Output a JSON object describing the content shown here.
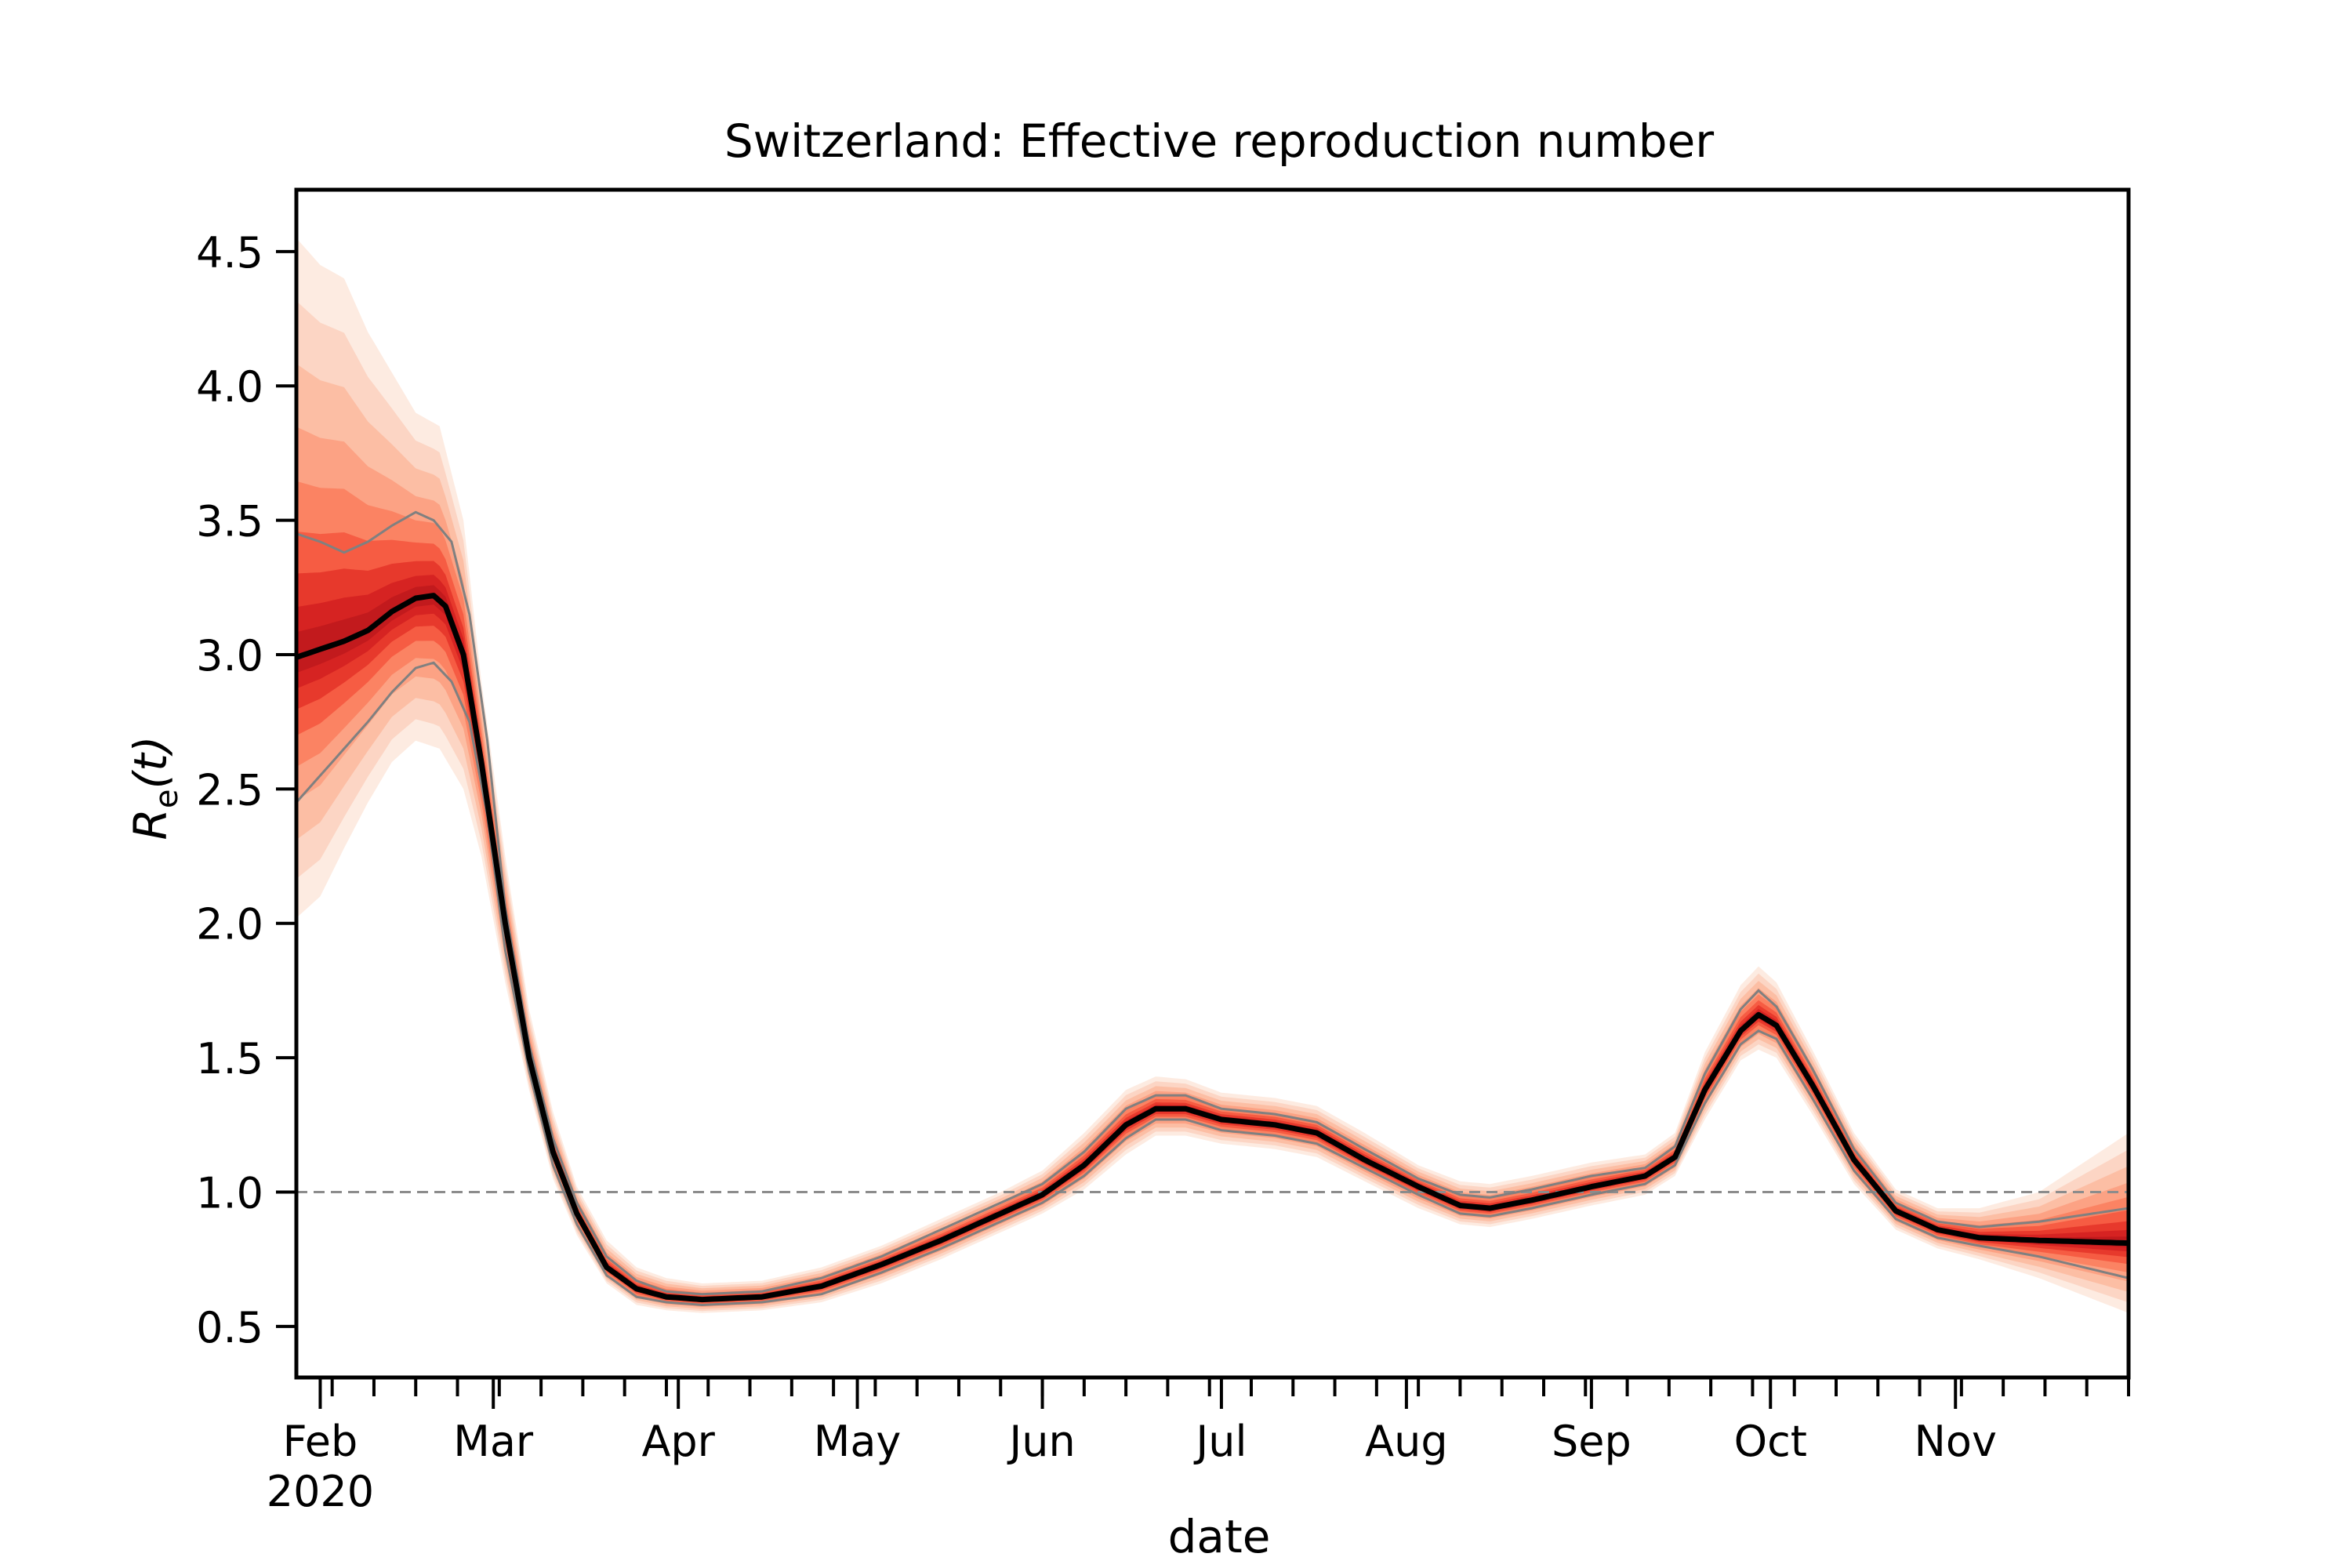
{
  "chart_data": {
    "type": "line",
    "title": "Switzerland: Effective reproduction number",
    "xlabel": "date",
    "ylabel": {
      "base": "R",
      "subscript": "e",
      "suffix": "(t)"
    },
    "x_axis": {
      "type": "date",
      "range": [
        "2020-01-28",
        "2020-11-30"
      ],
      "month_ticks": [
        {
          "date": "2020-02-01",
          "label": "Feb",
          "sublabel": "2020"
        },
        {
          "date": "2020-03-01",
          "label": "Mar"
        },
        {
          "date": "2020-04-01",
          "label": "Apr"
        },
        {
          "date": "2020-05-01",
          "label": "May"
        },
        {
          "date": "2020-06-01",
          "label": "Jun"
        },
        {
          "date": "2020-07-01",
          "label": "Jul"
        },
        {
          "date": "2020-08-01",
          "label": "Aug"
        },
        {
          "date": "2020-09-01",
          "label": "Sep"
        },
        {
          "date": "2020-10-01",
          "label": "Oct"
        },
        {
          "date": "2020-11-01",
          "label": "Nov"
        }
      ],
      "minor_ticks": "weekly"
    },
    "y_axis": {
      "range": [
        0.31,
        4.73
      ],
      "ticks": [
        "0.5",
        "1.0",
        "1.5",
        "2.0",
        "2.5",
        "3.0",
        "3.5",
        "4.0",
        "4.5"
      ]
    },
    "reference_line": {
      "y": 1.0,
      "style": "dashed",
      "color": "#8c8c8c"
    },
    "colors": {
      "median": "#000000",
      "band": "#d7301f",
      "band_light": "#fcbba1",
      "interval": "#808080"
    },
    "series": [
      {
        "role": "median",
        "points": [
          [
            "2020-01-28",
            2.99
          ],
          [
            "2020-02-01",
            3.02
          ],
          [
            "2020-02-05",
            3.05
          ],
          [
            "2020-02-09",
            3.09
          ],
          [
            "2020-02-13",
            3.16
          ],
          [
            "2020-02-17",
            3.21
          ],
          [
            "2020-02-20",
            3.22
          ],
          [
            "2020-02-22",
            3.18
          ],
          [
            "2020-02-25",
            3.0
          ],
          [
            "2020-02-28",
            2.6
          ],
          [
            "2020-03-03",
            2.0
          ],
          [
            "2020-03-07",
            1.5
          ],
          [
            "2020-03-11",
            1.15
          ],
          [
            "2020-03-15",
            0.92
          ],
          [
            "2020-03-20",
            0.72
          ],
          [
            "2020-03-25",
            0.64
          ],
          [
            "2020-03-30",
            0.61
          ],
          [
            "2020-04-05",
            0.6
          ],
          [
            "2020-04-15",
            0.61
          ],
          [
            "2020-04-25",
            0.65
          ],
          [
            "2020-05-05",
            0.73
          ],
          [
            "2020-05-15",
            0.82
          ],
          [
            "2020-05-25",
            0.92
          ],
          [
            "2020-06-01",
            0.99
          ],
          [
            "2020-06-08",
            1.1
          ],
          [
            "2020-06-15",
            1.25
          ],
          [
            "2020-06-20",
            1.31
          ],
          [
            "2020-06-25",
            1.31
          ],
          [
            "2020-07-01",
            1.27
          ],
          [
            "2020-07-10",
            1.25
          ],
          [
            "2020-07-17",
            1.22
          ],
          [
            "2020-07-25",
            1.12
          ],
          [
            "2020-08-03",
            1.02
          ],
          [
            "2020-08-10",
            0.95
          ],
          [
            "2020-08-15",
            0.94
          ],
          [
            "2020-08-22",
            0.97
          ],
          [
            "2020-09-01",
            1.02
          ],
          [
            "2020-09-10",
            1.06
          ],
          [
            "2020-09-15",
            1.13
          ],
          [
            "2020-09-20",
            1.38
          ],
          [
            "2020-09-26",
            1.6
          ],
          [
            "2020-09-29",
            1.66
          ],
          [
            "2020-10-02",
            1.62
          ],
          [
            "2020-10-08",
            1.4
          ],
          [
            "2020-10-15",
            1.12
          ],
          [
            "2020-10-22",
            0.93
          ],
          [
            "2020-10-29",
            0.86
          ],
          [
            "2020-11-05",
            0.83
          ],
          [
            "2020-11-15",
            0.82
          ],
          [
            "2020-11-30",
            0.81
          ]
        ]
      },
      {
        "role": "interval_upper",
        "points": [
          [
            "2020-01-28",
            3.45
          ],
          [
            "2020-02-01",
            3.42
          ],
          [
            "2020-02-05",
            3.38
          ],
          [
            "2020-02-09",
            3.42
          ],
          [
            "2020-02-13",
            3.48
          ],
          [
            "2020-02-17",
            3.53
          ],
          [
            "2020-02-20",
            3.5
          ],
          [
            "2020-02-23",
            3.42
          ],
          [
            "2020-02-26",
            3.15
          ],
          [
            "2020-02-29",
            2.68
          ],
          [
            "2020-03-03",
            2.06
          ],
          [
            "2020-03-07",
            1.55
          ],
          [
            "2020-03-11",
            1.2
          ],
          [
            "2020-03-15",
            0.96
          ],
          [
            "2020-03-20",
            0.76
          ],
          [
            "2020-03-25",
            0.67
          ],
          [
            "2020-03-30",
            0.63
          ],
          [
            "2020-04-05",
            0.62
          ],
          [
            "2020-04-15",
            0.63
          ],
          [
            "2020-04-25",
            0.68
          ],
          [
            "2020-05-05",
            0.76
          ],
          [
            "2020-05-15",
            0.86
          ],
          [
            "2020-05-25",
            0.96
          ],
          [
            "2020-06-01",
            1.03
          ],
          [
            "2020-06-08",
            1.15
          ],
          [
            "2020-06-15",
            1.31
          ],
          [
            "2020-06-20",
            1.36
          ],
          [
            "2020-06-25",
            1.36
          ],
          [
            "2020-07-01",
            1.31
          ],
          [
            "2020-07-10",
            1.29
          ],
          [
            "2020-07-17",
            1.26
          ],
          [
            "2020-07-25",
            1.16
          ],
          [
            "2020-08-03",
            1.05
          ],
          [
            "2020-08-10",
            0.99
          ],
          [
            "2020-08-15",
            0.98
          ],
          [
            "2020-08-22",
            1.01
          ],
          [
            "2020-09-01",
            1.06
          ],
          [
            "2020-09-10",
            1.09
          ],
          [
            "2020-09-15",
            1.17
          ],
          [
            "2020-09-20",
            1.44
          ],
          [
            "2020-09-26",
            1.68
          ],
          [
            "2020-09-29",
            1.75
          ],
          [
            "2020-10-02",
            1.69
          ],
          [
            "2020-10-08",
            1.46
          ],
          [
            "2020-10-15",
            1.16
          ],
          [
            "2020-10-22",
            0.96
          ],
          [
            "2020-10-29",
            0.89
          ],
          [
            "2020-11-05",
            0.87
          ],
          [
            "2020-11-15",
            0.89
          ],
          [
            "2020-11-30",
            0.94
          ]
        ]
      },
      {
        "role": "interval_lower",
        "points": [
          [
            "2020-01-28",
            2.45
          ],
          [
            "2020-02-01",
            2.55
          ],
          [
            "2020-02-05",
            2.65
          ],
          [
            "2020-02-09",
            2.75
          ],
          [
            "2020-02-13",
            2.86
          ],
          [
            "2020-02-17",
            2.95
          ],
          [
            "2020-02-20",
            2.97
          ],
          [
            "2020-02-23",
            2.9
          ],
          [
            "2020-02-26",
            2.75
          ],
          [
            "2020-02-29",
            2.4
          ],
          [
            "2020-03-03",
            1.9
          ],
          [
            "2020-03-07",
            1.45
          ],
          [
            "2020-03-11",
            1.1
          ],
          [
            "2020-03-15",
            0.88
          ],
          [
            "2020-03-20",
            0.69
          ],
          [
            "2020-03-25",
            0.61
          ],
          [
            "2020-03-30",
            0.59
          ],
          [
            "2020-04-05",
            0.58
          ],
          [
            "2020-04-15",
            0.59
          ],
          [
            "2020-04-25",
            0.62
          ],
          [
            "2020-05-05",
            0.7
          ],
          [
            "2020-05-15",
            0.79
          ],
          [
            "2020-05-25",
            0.89
          ],
          [
            "2020-06-01",
            0.96
          ],
          [
            "2020-06-08",
            1.06
          ],
          [
            "2020-06-15",
            1.2
          ],
          [
            "2020-06-20",
            1.27
          ],
          [
            "2020-06-25",
            1.27
          ],
          [
            "2020-07-01",
            1.23
          ],
          [
            "2020-07-10",
            1.21
          ],
          [
            "2020-07-17",
            1.18
          ],
          [
            "2020-07-25",
            1.09
          ],
          [
            "2020-08-03",
            0.99
          ],
          [
            "2020-08-10",
            0.92
          ],
          [
            "2020-08-15",
            0.91
          ],
          [
            "2020-08-22",
            0.94
          ],
          [
            "2020-09-01",
            0.99
          ],
          [
            "2020-09-10",
            1.03
          ],
          [
            "2020-09-15",
            1.1
          ],
          [
            "2020-09-20",
            1.33
          ],
          [
            "2020-09-26",
            1.55
          ],
          [
            "2020-09-29",
            1.6
          ],
          [
            "2020-10-02",
            1.57
          ],
          [
            "2020-10-08",
            1.35
          ],
          [
            "2020-10-15",
            1.08
          ],
          [
            "2020-10-22",
            0.9
          ],
          [
            "2020-10-29",
            0.83
          ],
          [
            "2020-11-05",
            0.8
          ],
          [
            "2020-11-15",
            0.76
          ],
          [
            "2020-11-30",
            0.68
          ]
        ]
      },
      {
        "role": "band_outer_upper",
        "points": [
          [
            "2020-01-28",
            4.55
          ],
          [
            "2020-02-01",
            4.45
          ],
          [
            "2020-02-05",
            4.4
          ],
          [
            "2020-02-09",
            4.2
          ],
          [
            "2020-02-13",
            4.05
          ],
          [
            "2020-02-17",
            3.9
          ],
          [
            "2020-02-21",
            3.85
          ],
          [
            "2020-02-25",
            3.5
          ],
          [
            "2020-02-28",
            2.9
          ],
          [
            "2020-03-03",
            2.25
          ],
          [
            "2020-03-07",
            1.68
          ],
          [
            "2020-03-11",
            1.3
          ],
          [
            "2020-03-15",
            1.02
          ],
          [
            "2020-03-20",
            0.82
          ],
          [
            "2020-03-25",
            0.72
          ],
          [
            "2020-03-30",
            0.68
          ],
          [
            "2020-04-05",
            0.66
          ],
          [
            "2020-04-15",
            0.67
          ],
          [
            "2020-04-25",
            0.72
          ],
          [
            "2020-05-05",
            0.8
          ],
          [
            "2020-05-15",
            0.9
          ],
          [
            "2020-05-25",
            1.0
          ],
          [
            "2020-06-01",
            1.08
          ],
          [
            "2020-06-08",
            1.22
          ],
          [
            "2020-06-15",
            1.38
          ],
          [
            "2020-06-20",
            1.43
          ],
          [
            "2020-06-25",
            1.42
          ],
          [
            "2020-07-01",
            1.37
          ],
          [
            "2020-07-10",
            1.35
          ],
          [
            "2020-07-17",
            1.32
          ],
          [
            "2020-07-25",
            1.22
          ],
          [
            "2020-08-03",
            1.1
          ],
          [
            "2020-08-10",
            1.04
          ],
          [
            "2020-08-15",
            1.03
          ],
          [
            "2020-08-22",
            1.06
          ],
          [
            "2020-09-01",
            1.11
          ],
          [
            "2020-09-10",
            1.14
          ],
          [
            "2020-09-15",
            1.22
          ],
          [
            "2020-09-20",
            1.52
          ],
          [
            "2020-09-26",
            1.77
          ],
          [
            "2020-09-29",
            1.84
          ],
          [
            "2020-10-02",
            1.78
          ],
          [
            "2020-10-08",
            1.53
          ],
          [
            "2020-10-15",
            1.22
          ],
          [
            "2020-10-22",
            1.01
          ],
          [
            "2020-10-29",
            0.94
          ],
          [
            "2020-11-05",
            0.94
          ],
          [
            "2020-11-15",
            1.0
          ],
          [
            "2020-11-30",
            1.22
          ]
        ]
      },
      {
        "role": "band_outer_lower",
        "points": [
          [
            "2020-01-28",
            2.02
          ],
          [
            "2020-02-01",
            2.1
          ],
          [
            "2020-02-05",
            2.28
          ],
          [
            "2020-02-09",
            2.45
          ],
          [
            "2020-02-13",
            2.6
          ],
          [
            "2020-02-17",
            2.68
          ],
          [
            "2020-02-21",
            2.65
          ],
          [
            "2020-02-25",
            2.5
          ],
          [
            "2020-02-28",
            2.25
          ],
          [
            "2020-03-03",
            1.78
          ],
          [
            "2020-03-07",
            1.38
          ],
          [
            "2020-03-11",
            1.05
          ],
          [
            "2020-03-15",
            0.84
          ],
          [
            "2020-03-20",
            0.66
          ],
          [
            "2020-03-25",
            0.58
          ],
          [
            "2020-03-30",
            0.56
          ],
          [
            "2020-04-05",
            0.55
          ],
          [
            "2020-04-15",
            0.56
          ],
          [
            "2020-04-25",
            0.59
          ],
          [
            "2020-05-05",
            0.66
          ],
          [
            "2020-05-15",
            0.75
          ],
          [
            "2020-05-25",
            0.85
          ],
          [
            "2020-06-01",
            0.92
          ],
          [
            "2020-06-08",
            1.01
          ],
          [
            "2020-06-15",
            1.14
          ],
          [
            "2020-06-20",
            1.21
          ],
          [
            "2020-06-25",
            1.21
          ],
          [
            "2020-07-01",
            1.18
          ],
          [
            "2020-07-10",
            1.16
          ],
          [
            "2020-07-17",
            1.13
          ],
          [
            "2020-07-25",
            1.04
          ],
          [
            "2020-08-03",
            0.94
          ],
          [
            "2020-08-10",
            0.88
          ],
          [
            "2020-08-15",
            0.87
          ],
          [
            "2020-08-22",
            0.9
          ],
          [
            "2020-09-01",
            0.95
          ],
          [
            "2020-09-10",
            0.99
          ],
          [
            "2020-09-15",
            1.06
          ],
          [
            "2020-09-20",
            1.27
          ],
          [
            "2020-09-26",
            1.49
          ],
          [
            "2020-09-29",
            1.53
          ],
          [
            "2020-10-02",
            1.5
          ],
          [
            "2020-10-08",
            1.29
          ],
          [
            "2020-10-15",
            1.03
          ],
          [
            "2020-10-22",
            0.86
          ],
          [
            "2020-10-29",
            0.79
          ],
          [
            "2020-11-05",
            0.75
          ],
          [
            "2020-11-15",
            0.68
          ],
          [
            "2020-11-30",
            0.55
          ]
        ]
      }
    ]
  }
}
